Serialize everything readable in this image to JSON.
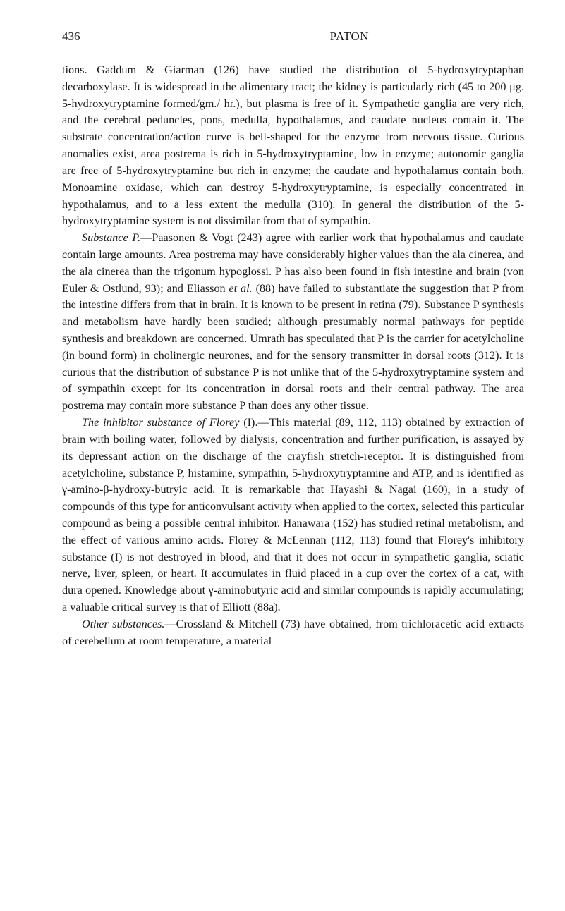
{
  "header": {
    "page_number": "436",
    "running_head": "PATON"
  },
  "paragraphs": {
    "p1": "tions. Gaddum & Giarman (126) have studied the distribution of 5-hydroxy­tryptaphan decarboxylase. It is widespread in the alimentary tract; the kidney is particularly rich (45 to 200 μg. 5-hydroxytryptamine formed/gm./ hr.), but plasma is free of it. Sympathetic ganglia are very rich, and the cerebral peduncles, pons, medulla, hypothalamus, and caudate nucleus con­tain it. The substrate concentration/action curve is bell-shaped for the enzyme from nervous tissue. Curious anomalies exist, area postrema is rich in 5-hydroxytryptamine, low in enzyme; autonomic ganglia are free of 5-hydroxytryptamine but rich in enzyme; the caudate and hypothalamus con­tain both. Monoamine oxidase, which can destroy 5-hydroxytryptamine, is especially concentrated in hypothalamus, and to a less extent the medulla (310). In general the distribution of the 5-hydroxytryptamine system is not dissimilar from that of sympathin.",
    "p2_label": "Substance P.",
    "p2_rest": "—Paasonen & Vogt (243) agree with earlier work that hypo­thalamus and caudate contain large amounts. Area postrema may have con­siderably higher values than the ala cinerea, and the ala cinerea than the trigonum hypoglossi. P has also been found in fish intestine and brain (von Euler & Ostlund, 93); and Eliasson ",
    "p2_etal": "et al.",
    "p2_rest2": " (88) have failed to substantiate the suggestion that P from the intestine differs from that in brain. It is known to be present in retina (79). Substance P synthesis and metabolism have hardly been studied; although presumably normal pathways for peptide synthesis and breakdown are concerned. Umrath has speculated that P is the carrier for acetylcholine (in bound form) in cholinergic neurones, and for the sen­sory transmitter in dorsal roots (312). It is curious that the distribution of substance P is not unlike that of the 5-hydroxytryptamine system and of sympathin except for its concentration in dorsal roots and their central pathway. The area postrema may contain more substance P than does any other tissue.",
    "p3_label": "The inhibitor substance of Florey",
    "p3_paren": " (I).",
    "p3_rest": "—This material (89, 112, 113) ob­tained by extraction of brain with boiling water, followed by dialysis, con­centration and further purification, is assayed by its depressant action on the discharge of the crayfish stretch-receptor. It is distinguished from acetylcholine, substance P, histamine, sympathin, 5-hydroxytryptamine and ATP, and is identified as γ-amino-β-hydroxy-butryic acid. It is remarkable that Hayashi & Nagai (160), in a study of compounds of this type for anti­convulsant activity when applied to the cortex, selected this particular compound as being a possible central inhibitor. Hanawara (152) has studied retinal metabolism, and the effect of various amino acids. Florey & McLennan (112, 113) found that Florey's inhibitory substance (I) is not destroyed in blood, and that it does not occur in sympathetic ganglia, sciatic nerve, liver, spleen, or heart. It accumulates in fluid placed in a cup over the cortex of a cat, with dura opened. Knowledge about γ-aminobutyric acid and similar compounds is rapidly accumulating; a valuable critical survey is that of Elliott (88a).",
    "p4_label": "Other substances.",
    "p4_rest": "—Crossland & Mitchell (73) have obtained, from tri­chloracetic acid extracts of cerebellum at room temperature, a material"
  }
}
